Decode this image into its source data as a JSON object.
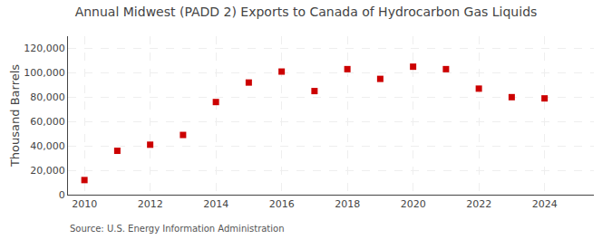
{
  "chart_data": {
    "type": "scatter",
    "title": "Annual Midwest (PADD 2) Exports to Canada of Hydrocarbon Gas Liquids",
    "y_label": "Thousand Barrels",
    "annotations": [
      "Source: U.S. Energy Information Administration"
    ],
    "x": [
      2010,
      2011,
      2012,
      2013,
      2014,
      2015,
      2016,
      2017,
      2018,
      2019,
      2020,
      2021,
      2022,
      2023,
      2024
    ],
    "values": [
      12000,
      36000,
      41000,
      49000,
      76000,
      92000,
      101000,
      85000,
      103000,
      95000,
      105000,
      103000,
      87000,
      80000,
      79000
    ],
    "color": "#cc0000",
    "marker": "square",
    "xlim": [
      2009.5,
      2025.5
    ],
    "xticks": [
      2010,
      2012,
      2014,
      2016,
      2018,
      2020,
      2022,
      2024
    ],
    "ylim": [
      0,
      130000
    ],
    "yticks": [
      0,
      {
        "value": 20000,
        "label": "20,000"
      },
      {
        "value": 40000,
        "label": "40,000"
      },
      {
        "value": 60000,
        "label": "60,000"
      },
      {
        "value": 80000,
        "label": "80,000"
      },
      {
        "value": 100000,
        "label": "100,000"
      },
      {
        "value": 120000,
        "label": "120,000"
      }
    ],
    "grid": true
  }
}
